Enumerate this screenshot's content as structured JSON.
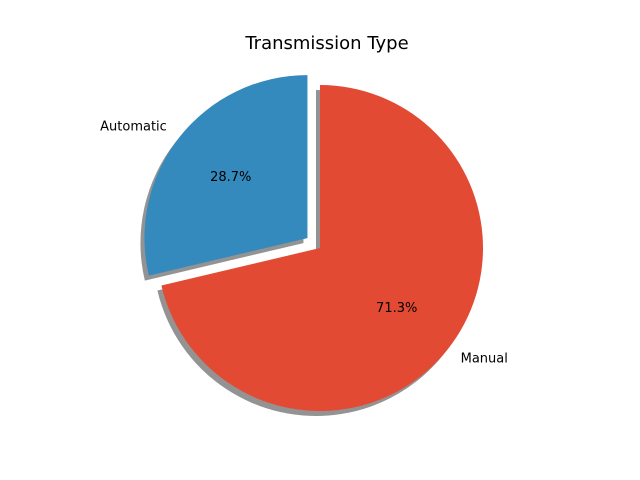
{
  "chart_data": {
    "type": "pie",
    "title": "Transmission Type",
    "categories": [
      "Automatic",
      "Manual"
    ],
    "values": [
      28.7,
      71.3
    ],
    "percent_labels": [
      "28.7%",
      "71.3%"
    ],
    "colors": [
      "#348abd",
      "#e24a33"
    ],
    "exploded": [
      "Automatic"
    ],
    "shadow": true
  }
}
